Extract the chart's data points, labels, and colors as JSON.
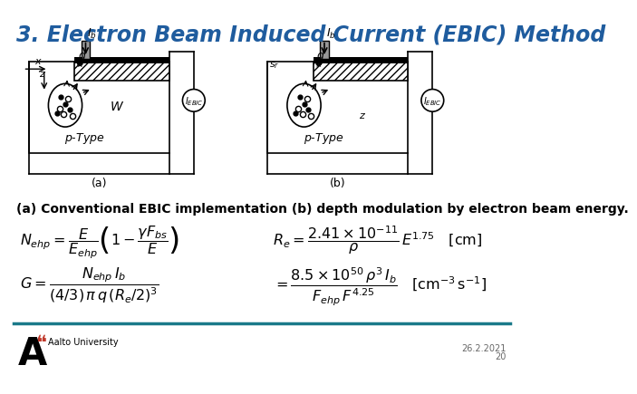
{
  "title": "3. Electron Beam Induced Current (EBIC) Method",
  "title_color": "#1F5C9E",
  "caption": "(a) Conventional EBIC implementation (b) depth modulation by electron beam energy.",
  "footer_line_color": "#1B7A8A",
  "footer_date": "26.2.2021",
  "footer_page": "20",
  "bg_color": "#ffffff"
}
